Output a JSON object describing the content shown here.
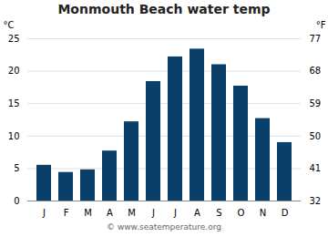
{
  "chart_data": {
    "type": "bar",
    "title": "Monmouth Beach water temp",
    "categories": [
      "J",
      "F",
      "M",
      "A",
      "M",
      "J",
      "J",
      "A",
      "S",
      "O",
      "N",
      "D"
    ],
    "values": [
      5.5,
      4.4,
      4.8,
      7.7,
      12.2,
      18.4,
      22.2,
      23.4,
      21.0,
      17.7,
      12.7,
      9.0
    ],
    "color": "#0a3f6a",
    "ylabel": "°C",
    "y2label": "°F",
    "ylim": [
      0,
      25
    ],
    "yticks": [
      0,
      5,
      10,
      15,
      20,
      25
    ],
    "y2lim": [
      32,
      77
    ],
    "y2ticks": [
      32,
      41,
      50,
      59,
      68,
      77
    ],
    "grid": true,
    "annotations": [
      "© www.seatemperature.org"
    ]
  }
}
